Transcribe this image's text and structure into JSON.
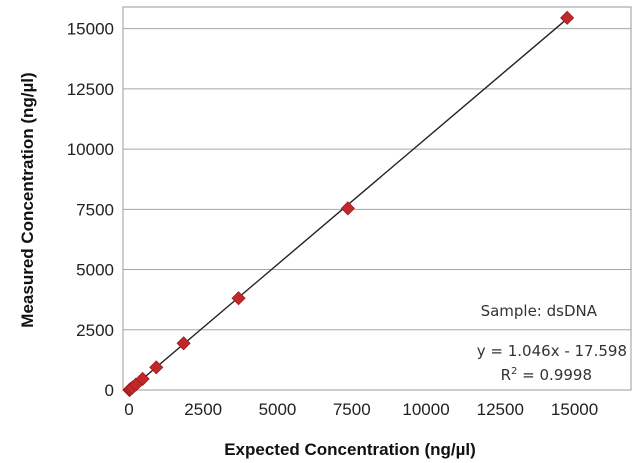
{
  "chart_data": {
    "type": "scatter",
    "xlabel": "Expected Concentration (ng/µl)",
    "ylabel": "Measured Concentration (ng/µl)",
    "xlim": [
      -200,
      16900
    ],
    "ylim": [
      0,
      15900
    ],
    "xticks": [
      0,
      2500,
      5000,
      7500,
      10000,
      12500,
      15000
    ],
    "yticks": [
      0,
      2500,
      5000,
      7500,
      10000,
      12500,
      15000
    ],
    "x_tick_labels": [
      "0",
      "2500",
      "5000",
      "7500",
      "10000",
      "12500",
      "15000"
    ],
    "y_tick_labels": [
      "0",
      "2500",
      "5000",
      "7500",
      "10000",
      "12500",
      "15000"
    ],
    "grid": true,
    "series": [
      {
        "color": "#c0282a",
        "marker": "diamond",
        "x": [
          15,
          30,
          60,
          115,
          230,
          460,
          920,
          1840,
          3690,
          7370,
          14750
        ],
        "y": [
          0,
          15,
          45,
          100,
          220,
          460,
          940,
          1940,
          3810,
          7540,
          15450
        ]
      }
    ],
    "trendline": {
      "slope": 1.046,
      "intercept": -17.598,
      "color": "#222222"
    },
    "annotations": {
      "sample": "Sample: dsDNA",
      "equation": "y = 1.046x - 17.598",
      "r2_prefix": "R",
      "r2_sup": "2",
      "r2_value": " = 0.9998"
    }
  }
}
